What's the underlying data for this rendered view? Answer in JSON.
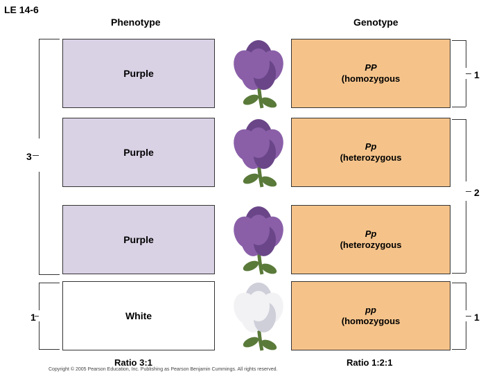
{
  "figure_label": "LE 14-6",
  "headers": {
    "phenotype": "Phenotype",
    "genotype": "Genotype"
  },
  "rows": [
    {
      "phenotype": "Purple",
      "allele": "PP",
      "zyg": "(homozygous",
      "flower_color": "#8a5fa8",
      "flower_shadow": "#6a4688",
      "ph_bg": "#d9d1e4"
    },
    {
      "phenotype": "Purple",
      "allele": "Pp",
      "zyg": "(heterozygous",
      "flower_color": "#8a5fa8",
      "flower_shadow": "#6a4688",
      "ph_bg": "#d9d1e4"
    },
    {
      "phenotype": "Purple",
      "allele": "Pp",
      "zyg": "(heterozygous",
      "flower_color": "#8a5fa8",
      "flower_shadow": "#6a4688",
      "ph_bg": "#d9d1e4"
    },
    {
      "phenotype": "White",
      "allele": "pp",
      "zyg": "(homozygous",
      "flower_color": "#f2f2f5",
      "flower_shadow": "#cfcfda",
      "ph_bg": "#ffffff"
    }
  ],
  "left_counts": {
    "purple": "3",
    "white": "1"
  },
  "right_counts": {
    "PP": "1",
    "Pp": "2",
    "pp": "1"
  },
  "ratios": {
    "phenotype": "Ratio 3:1",
    "genotype": "Ratio 1:2:1"
  },
  "copyright": "Copyright © 2005 Pearson Education, Inc. Publishing as Pearson Benjamin Cummings. All rights reserved.",
  "colors": {
    "genotype_bg": "#f5c38a",
    "stem": "#5a7a3a"
  }
}
